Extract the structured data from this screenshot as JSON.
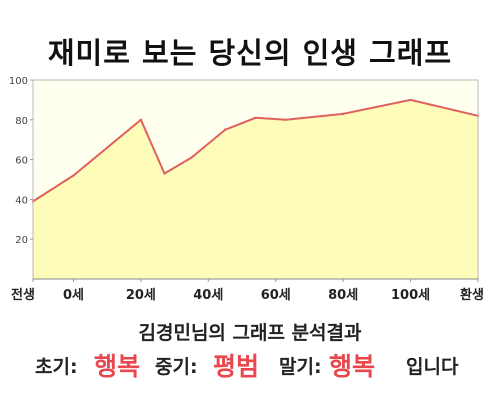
{
  "title": "재미로 보는 당신의 인생 그래프",
  "subtitle": "김경민님의 그래프 분석결과",
  "result": {
    "early_label": "초기:",
    "early_value": "행복",
    "middle_label": "중기:",
    "middle_value": "평범",
    "late_label": "말기:",
    "late_value": "행복",
    "ending": "입니다"
  },
  "colors": {
    "line": "#e06060",
    "fill": "#fdfcb8",
    "plot_background": "#fffff0",
    "accent_red": "#e8484d"
  },
  "chart_data": {
    "type": "area",
    "title": "재미로 보는 당신의 인생 그래프",
    "xlabel": "",
    "ylabel": "",
    "x_tick_labels": [
      "전생",
      "0세",
      "20세",
      "40세",
      "60세",
      "80세",
      "100세",
      "환생"
    ],
    "y_ticks": [
      20,
      40,
      60,
      80,
      100
    ],
    "ylim": [
      0,
      100
    ],
    "grid": false,
    "points": [
      {
        "x": "전생",
        "y": 39
      },
      {
        "x": "0세",
        "y": 52
      },
      {
        "x": "20세",
        "y": 80
      },
      {
        "x": "27세",
        "y": 53
      },
      {
        "x": "35세",
        "y": 61
      },
      {
        "x": "45세",
        "y": 75
      },
      {
        "x": "54세",
        "y": 81
      },
      {
        "x": "63세",
        "y": 80
      },
      {
        "x": "80세",
        "y": 83
      },
      {
        "x": "100세",
        "y": 90
      },
      {
        "x": "환생",
        "y": 82
      }
    ]
  }
}
